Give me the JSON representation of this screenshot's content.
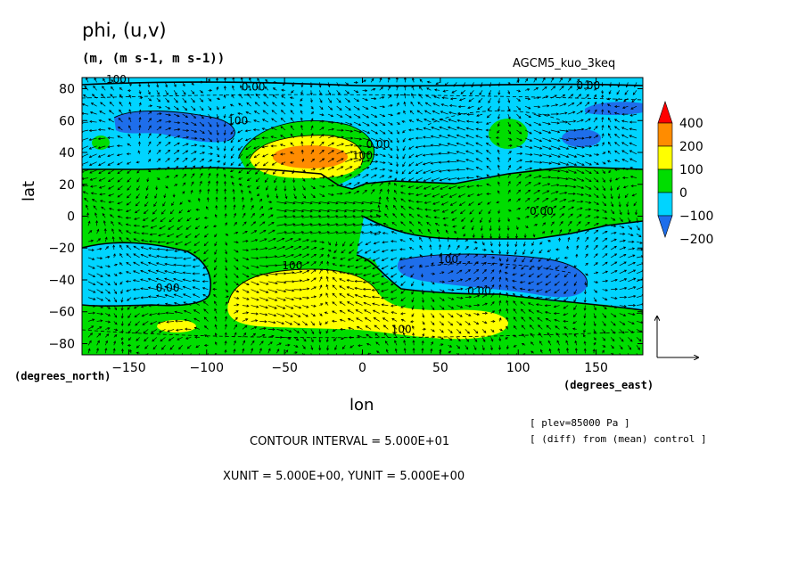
{
  "chart_data": {
    "type": "heatmap",
    "title": "phi, (u,v)",
    "units": "(m, (m s-1, m s-1))",
    "experiment": "AGCM5_kuo_3keq",
    "xlabel": "lon",
    "ylabel": "lat",
    "x_unit_label": "(degrees_east)",
    "y_unit_label": "(degrees_north)",
    "xlim": [
      -180,
      180
    ],
    "ylim": [
      -87,
      87
    ],
    "x_ticks": [
      -150,
      -100,
      -50,
      0,
      50,
      100,
      150
    ],
    "y_ticks": [
      80,
      60,
      40,
      20,
      0,
      -20,
      -40,
      -60,
      -80
    ],
    "colorbar": {
      "labels": [
        "400",
        "200",
        "100",
        "0",
        "−100",
        "−200"
      ],
      "levels": [
        -200,
        -100,
        0,
        100,
        200,
        400
      ],
      "colors": [
        "#1e6eeb",
        "#00d4ff",
        "#00dd00",
        "#ffff00",
        "#ff8c00",
        "#ff0000"
      ]
    },
    "contour_labels": [
      {
        "text": "100",
        "lon": -158,
        "lat": 86
      },
      {
        "text": "0.00",
        "lon": -70,
        "lat": 81
      },
      {
        "text": "0.00",
        "lon": 145,
        "lat": 82
      },
      {
        "text": "100",
        "lon": -80,
        "lat": 60
      },
      {
        "text": "100",
        "lon": 0,
        "lat": 38
      },
      {
        "text": "0.00",
        "lon": 10,
        "lat": 45
      },
      {
        "text": "0.00",
        "lon": 115,
        "lat": 3
      },
      {
        "text": "100",
        "lon": 55,
        "lat": -27
      },
      {
        "text": "100",
        "lon": -45,
        "lat": -31
      },
      {
        "text": "0.00",
        "lon": -125,
        "lat": -45
      },
      {
        "text": "0.00",
        "lon": 75,
        "lat": -47
      },
      {
        "text": "100",
        "lon": 25,
        "lat": -71
      }
    ],
    "grid": false
  },
  "footer": {
    "contour_interval": "CONTOUR INTERVAL = 5.000E+01",
    "units": "XUNIT = 5.000E+00, YUNIT = 5.000E+00",
    "level": "[ plev=85000 Pa ]",
    "diff": "[ (diff) from (mean) control ]"
  }
}
